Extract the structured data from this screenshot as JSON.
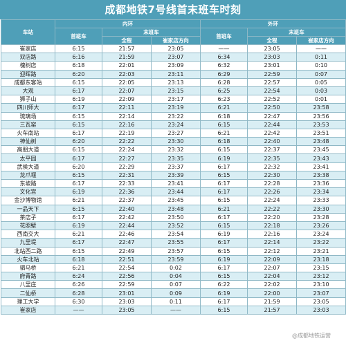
{
  "title": "成都地铁7号线首末班车时刻",
  "headers": {
    "station": "车站",
    "inner": "内环",
    "outer": "外环",
    "first": "首班车",
    "last": "末班车",
    "full": "全程",
    "to_cuijia": "崔家店方向"
  },
  "rows": [
    [
      "崔家店",
      "6:15",
      "21:57",
      "23:05",
      "——",
      "23:05",
      "——"
    ],
    [
      "双店路",
      "6:16",
      "21:59",
      "23:07",
      "6:34",
      "23:03",
      "0:11"
    ],
    [
      "槐树店",
      "6:18",
      "22:01",
      "23:09",
      "6:32",
      "23:01",
      "0:10"
    ],
    [
      "迎晖路",
      "6:20",
      "22:03",
      "23:11",
      "6:29",
      "22:59",
      "0:07"
    ],
    [
      "成都东客站",
      "6:15",
      "22:05",
      "23:13",
      "6:28",
      "22:57",
      "0:05"
    ],
    [
      "大观",
      "6:17",
      "22:07",
      "23:15",
      "6:25",
      "22:54",
      "0:03"
    ],
    [
      "狮子山",
      "6:19",
      "22:09",
      "23:17",
      "6:23",
      "22:52",
      "0:01"
    ],
    [
      "四川师大",
      "6:17",
      "22:11",
      "23:19",
      "6:21",
      "22:50",
      "23:58"
    ],
    [
      "琉璃场",
      "6:15",
      "22:14",
      "23:22",
      "6:18",
      "22:47",
      "23:56"
    ],
    [
      "三瓦窑",
      "6:15",
      "22:16",
      "23:24",
      "6:15",
      "22:44",
      "23:53"
    ],
    [
      "火车南站",
      "6:17",
      "22:19",
      "23:27",
      "6:21",
      "22:42",
      "23:51"
    ],
    [
      "神仙树",
      "6:20",
      "22:22",
      "23:30",
      "6:18",
      "22:40",
      "23:48"
    ],
    [
      "高朋大道",
      "6:15",
      "22:24",
      "23:32",
      "6:15",
      "22:37",
      "23:45"
    ],
    [
      "太平园",
      "6:17",
      "22:27",
      "23:35",
      "6:19",
      "22:35",
      "23:43"
    ],
    [
      "武侯大道",
      "6:20",
      "22:29",
      "23:37",
      "6:17",
      "22:32",
      "23:41"
    ],
    [
      "龙爪堰",
      "6:15",
      "22:31",
      "23:39",
      "6:15",
      "22:30",
      "23:38"
    ],
    [
      "东坡路",
      "6:17",
      "22:33",
      "23:41",
      "6:17",
      "22:28",
      "23:36"
    ],
    [
      "文化宫",
      "6:19",
      "22:36",
      "23:44",
      "6:17",
      "22:26",
      "23:34"
    ],
    [
      "金沙博物馆",
      "6:21",
      "22:37",
      "23:45",
      "6:15",
      "22:24",
      "23:33"
    ],
    [
      "一品天下",
      "6:15",
      "22:40",
      "23:48",
      "6:21",
      "22:22",
      "23:30"
    ],
    [
      "茶店子",
      "6:17",
      "22:42",
      "23:50",
      "6:17",
      "22:20",
      "23:28"
    ],
    [
      "花照壁",
      "6:19",
      "22:44",
      "23:52",
      "6:15",
      "22:18",
      "23:26"
    ],
    [
      "西南交大",
      "6:21",
      "22:46",
      "23:54",
      "6:19",
      "22:16",
      "23:24"
    ],
    [
      "九里堤",
      "6:17",
      "22:47",
      "23:55",
      "6:17",
      "22:14",
      "23:22"
    ],
    [
      "北站西二路",
      "6:15",
      "22:49",
      "23:57",
      "6:15",
      "22:12",
      "23:21"
    ],
    [
      "火车北站",
      "6:18",
      "22:51",
      "23:59",
      "6:19",
      "22:09",
      "23:18"
    ],
    [
      "驷马桥",
      "6:21",
      "22:54",
      "0:02",
      "6:17",
      "22:07",
      "23:15"
    ],
    [
      "府青路",
      "6:24",
      "22:56",
      "0:04",
      "6:15",
      "22:04",
      "23:12"
    ],
    [
      "八里庄",
      "6:26",
      "22:59",
      "0:07",
      "6:22",
      "22:02",
      "23:10"
    ],
    [
      "二仙桥",
      "6:28",
      "23:01",
      "0:09",
      "6:19",
      "22:00",
      "23:07"
    ],
    [
      "理工大学",
      "6:30",
      "23:03",
      "0:11",
      "6:17",
      "21:59",
      "23:05"
    ],
    [
      "崔家店",
      "——",
      "23:05",
      "——",
      "6:15",
      "21:57",
      "23:03"
    ]
  ],
  "watermark": "@成都地铁运营"
}
